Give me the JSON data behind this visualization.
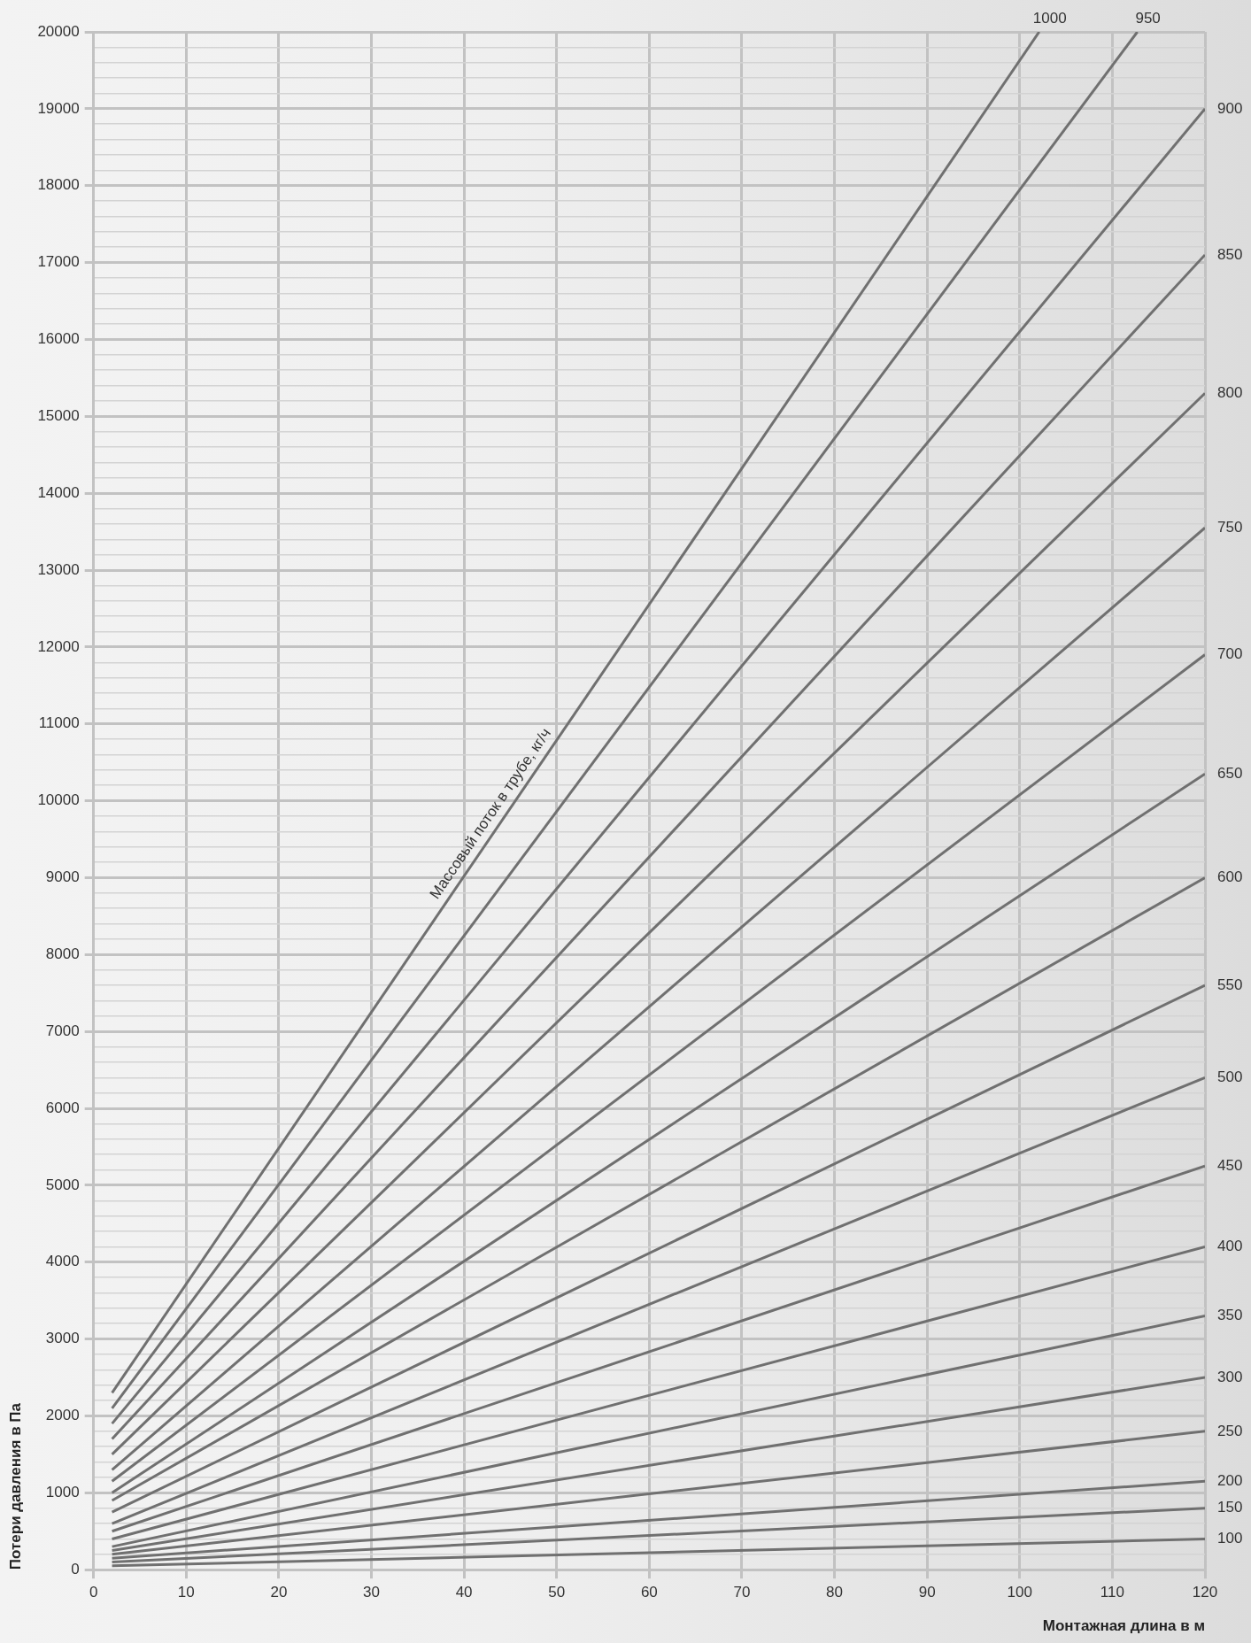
{
  "chart_data": {
    "type": "line",
    "xlabel": "Монтажная длина в м",
    "ylabel": "Потери давления в Па",
    "annotations": [
      "Массовый поток в трубе, кг/ч"
    ],
    "xlim": [
      0,
      120
    ],
    "xticks": [
      0,
      10,
      20,
      30,
      40,
      50,
      60,
      70,
      80,
      90,
      100,
      110,
      120
    ],
    "ylim": [
      0,
      20000
    ],
    "yticks": [
      0,
      {
        "value": 200,
        "label": null
      },
      {
        "value": 400,
        "label": null
      },
      {
        "value": 600,
        "label": null
      },
      {
        "value": 800,
        "label": null
      },
      1000,
      {
        "value": 1200,
        "label": null
      },
      {
        "value": 1400,
        "label": null
      },
      {
        "value": 1600,
        "label": null
      },
      {
        "value": 1800,
        "label": null
      },
      2000,
      {
        "value": 2200,
        "label": null
      },
      {
        "value": 2400,
        "label": null
      },
      {
        "value": 2600,
        "label": null
      },
      {
        "value": 2800,
        "label": null
      },
      3000,
      {
        "value": 3200,
        "label": null
      },
      {
        "value": 3400,
        "label": null
      },
      {
        "value": 3600,
        "label": null
      },
      {
        "value": 3800,
        "label": null
      },
      4000,
      {
        "value": 4200,
        "label": null
      },
      {
        "value": 4400,
        "label": null
      },
      {
        "value": 4600,
        "label": null
      },
      {
        "value": 4800,
        "label": null
      },
      5000,
      {
        "value": 5200,
        "label": null
      },
      {
        "value": 5400,
        "label": null
      },
      {
        "value": 5600,
        "label": null
      },
      {
        "value": 5800,
        "label": null
      },
      6000,
      {
        "value": 6200,
        "label": null
      },
      {
        "value": 6400,
        "label": null
      },
      {
        "value": 6600,
        "label": null
      },
      {
        "value": 6800,
        "label": null
      },
      7000,
      {
        "value": 7200,
        "label": null
      },
      {
        "value": 7400,
        "label": null
      },
      {
        "value": 7600,
        "label": null
      },
      {
        "value": 7800,
        "label": null
      },
      8000,
      {
        "value": 8200,
        "label": null
      },
      {
        "value": 8400,
        "label": null
      },
      {
        "value": 8600,
        "label": null
      },
      {
        "value": 8800,
        "label": null
      },
      9000,
      {
        "value": 9200,
        "label": null
      },
      {
        "value": 9400,
        "label": null
      },
      {
        "value": 9600,
        "label": null
      },
      {
        "value": 9800,
        "label": null
      },
      10000,
      {
        "value": 10200,
        "label": null
      },
      {
        "value": 10400,
        "label": null
      },
      {
        "value": 10600,
        "label": null
      },
      {
        "value": 10800,
        "label": null
      },
      11000,
      {
        "value": 11200,
        "label": null
      },
      {
        "value": 11400,
        "label": null
      },
      {
        "value": 11600,
        "label": null
      },
      {
        "value": 11800,
        "label": null
      },
      12000,
      {
        "value": 12200,
        "label": null
      },
      {
        "value": 12400,
        "label": null
      },
      {
        "value": 12600,
        "label": null
      },
      {
        "value": 12800,
        "label": null
      },
      13000,
      {
        "value": 13200,
        "label": null
      },
      {
        "value": 13400,
        "label": null
      },
      {
        "value": 13600,
        "label": null
      },
      {
        "value": 13800,
        "label": null
      },
      14000,
      {
        "value": 14200,
        "label": null
      },
      {
        "value": 14400,
        "label": null
      },
      {
        "value": 14600,
        "label": null
      },
      {
        "value": 14800,
        "label": null
      },
      15000,
      {
        "value": 15200,
        "label": null
      },
      {
        "value": 15400,
        "label": null
      },
      {
        "value": 15600,
        "label": null
      },
      {
        "value": 15800,
        "label": null
      },
      16000,
      {
        "value": 16200,
        "label": null
      },
      {
        "value": 16400,
        "label": null
      },
      {
        "value": 16600,
        "label": null
      },
      {
        "value": 16800,
        "label": null
      },
      17000,
      {
        "value": 17200,
        "label": null
      },
      {
        "value": 17400,
        "label": null
      },
      {
        "value": 17600,
        "label": null
      },
      {
        "value": 17800,
        "label": null
      },
      18000,
      {
        "value": 18200,
        "label": null
      },
      {
        "value": 18400,
        "label": null
      },
      {
        "value": 18600,
        "label": null
      },
      {
        "value": 18800,
        "label": null
      },
      19000,
      {
        "value": 19200,
        "label": null
      },
      {
        "value": 19400,
        "label": null
      },
      {
        "value": 19600,
        "label": null
      },
      {
        "value": 19800,
        "label": null
      },
      20000
    ],
    "grid": true,
    "legend": false,
    "marker": "none",
    "line_style": "solid",
    "series": [
      {
        "name": "100",
        "color": "#707070",
        "x": [
          2,
          120
        ],
        "values": [
          50,
          400
        ]
      },
      {
        "name": "150",
        "color": "#707070",
        "x": [
          2,
          120
        ],
        "values": [
          100,
          800
        ]
      },
      {
        "name": "200",
        "color": "#707070",
        "x": [
          2,
          120
        ],
        "values": [
          150,
          1150
        ]
      },
      {
        "name": "250",
        "color": "#707070",
        "x": [
          2,
          120
        ],
        "values": [
          200,
          1800
        ]
      },
      {
        "name": "300",
        "color": "#707070",
        "x": [
          2,
          120
        ],
        "values": [
          250,
          2500
        ]
      },
      {
        "name": "350",
        "color": "#707070",
        "x": [
          2,
          120
        ],
        "values": [
          300,
          3300
        ]
      },
      {
        "name": "400",
        "color": "#707070",
        "x": [
          2,
          120
        ],
        "values": [
          400,
          4200
        ]
      },
      {
        "name": "450",
        "color": "#707070",
        "x": [
          2,
          120
        ],
        "values": [
          500,
          5250
        ]
      },
      {
        "name": "500",
        "color": "#707070",
        "x": [
          2,
          120
        ],
        "values": [
          600,
          6400
        ]
      },
      {
        "name": "550",
        "color": "#707070",
        "x": [
          2,
          120
        ],
        "values": [
          750,
          7600
        ]
      },
      {
        "name": "600",
        "color": "#707070",
        "x": [
          2,
          120
        ],
        "values": [
          900,
          9000
        ]
      },
      {
        "name": "650",
        "color": "#707070",
        "x": [
          2,
          120
        ],
        "values": [
          1000,
          10350
        ]
      },
      {
        "name": "700",
        "color": "#707070",
        "x": [
          2,
          120
        ],
        "values": [
          1150,
          11900
        ]
      },
      {
        "name": "750",
        "color": "#707070",
        "x": [
          2,
          120
        ],
        "values": [
          1300,
          13550
        ]
      },
      {
        "name": "800",
        "color": "#707070",
        "x": [
          2,
          120
        ],
        "values": [
          1500,
          15300
        ]
      },
      {
        "name": "850",
        "color": "#707070",
        "x": [
          2,
          120
        ],
        "values": [
          1700,
          17100
        ]
      },
      {
        "name": "900",
        "color": "#707070",
        "x": [
          2,
          120
        ],
        "values": [
          1900,
          19000
        ]
      },
      {
        "name": "950",
        "color": "#707070",
        "x": [
          2,
          112.7
        ],
        "values": [
          2100,
          20000
        ]
      },
      {
        "name": "1000",
        "color": "#707070",
        "x": [
          2,
          102.1
        ],
        "values": [
          2300,
          20000
        ]
      }
    ]
  }
}
